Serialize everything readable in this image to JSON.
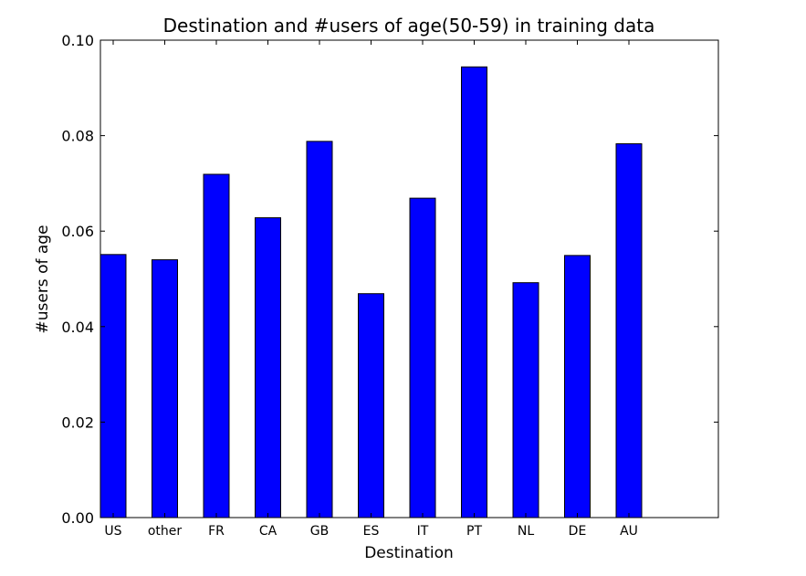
{
  "chart_data": {
    "type": "bar",
    "title": "Destination and #users of age(50-59) in training data",
    "xlabel": "Destination",
    "ylabel": "#users of age",
    "categories": [
      "US",
      "other",
      "FR",
      "CA",
      "GB",
      "ES",
      "IT",
      "PT",
      "NL",
      "DE",
      "AU"
    ],
    "values": [
      0.0551,
      0.054,
      0.0719,
      0.0628,
      0.0788,
      0.0469,
      0.0669,
      0.0944,
      0.0492,
      0.0549,
      0.0783
    ],
    "ylim": [
      0,
      0.1
    ],
    "yticks": [
      "0.00",
      "0.02",
      "0.04",
      "0.06",
      "0.08",
      "0.10"
    ],
    "grid": false,
    "bar_color": "#0000ff",
    "edge_color": "#000000"
  }
}
